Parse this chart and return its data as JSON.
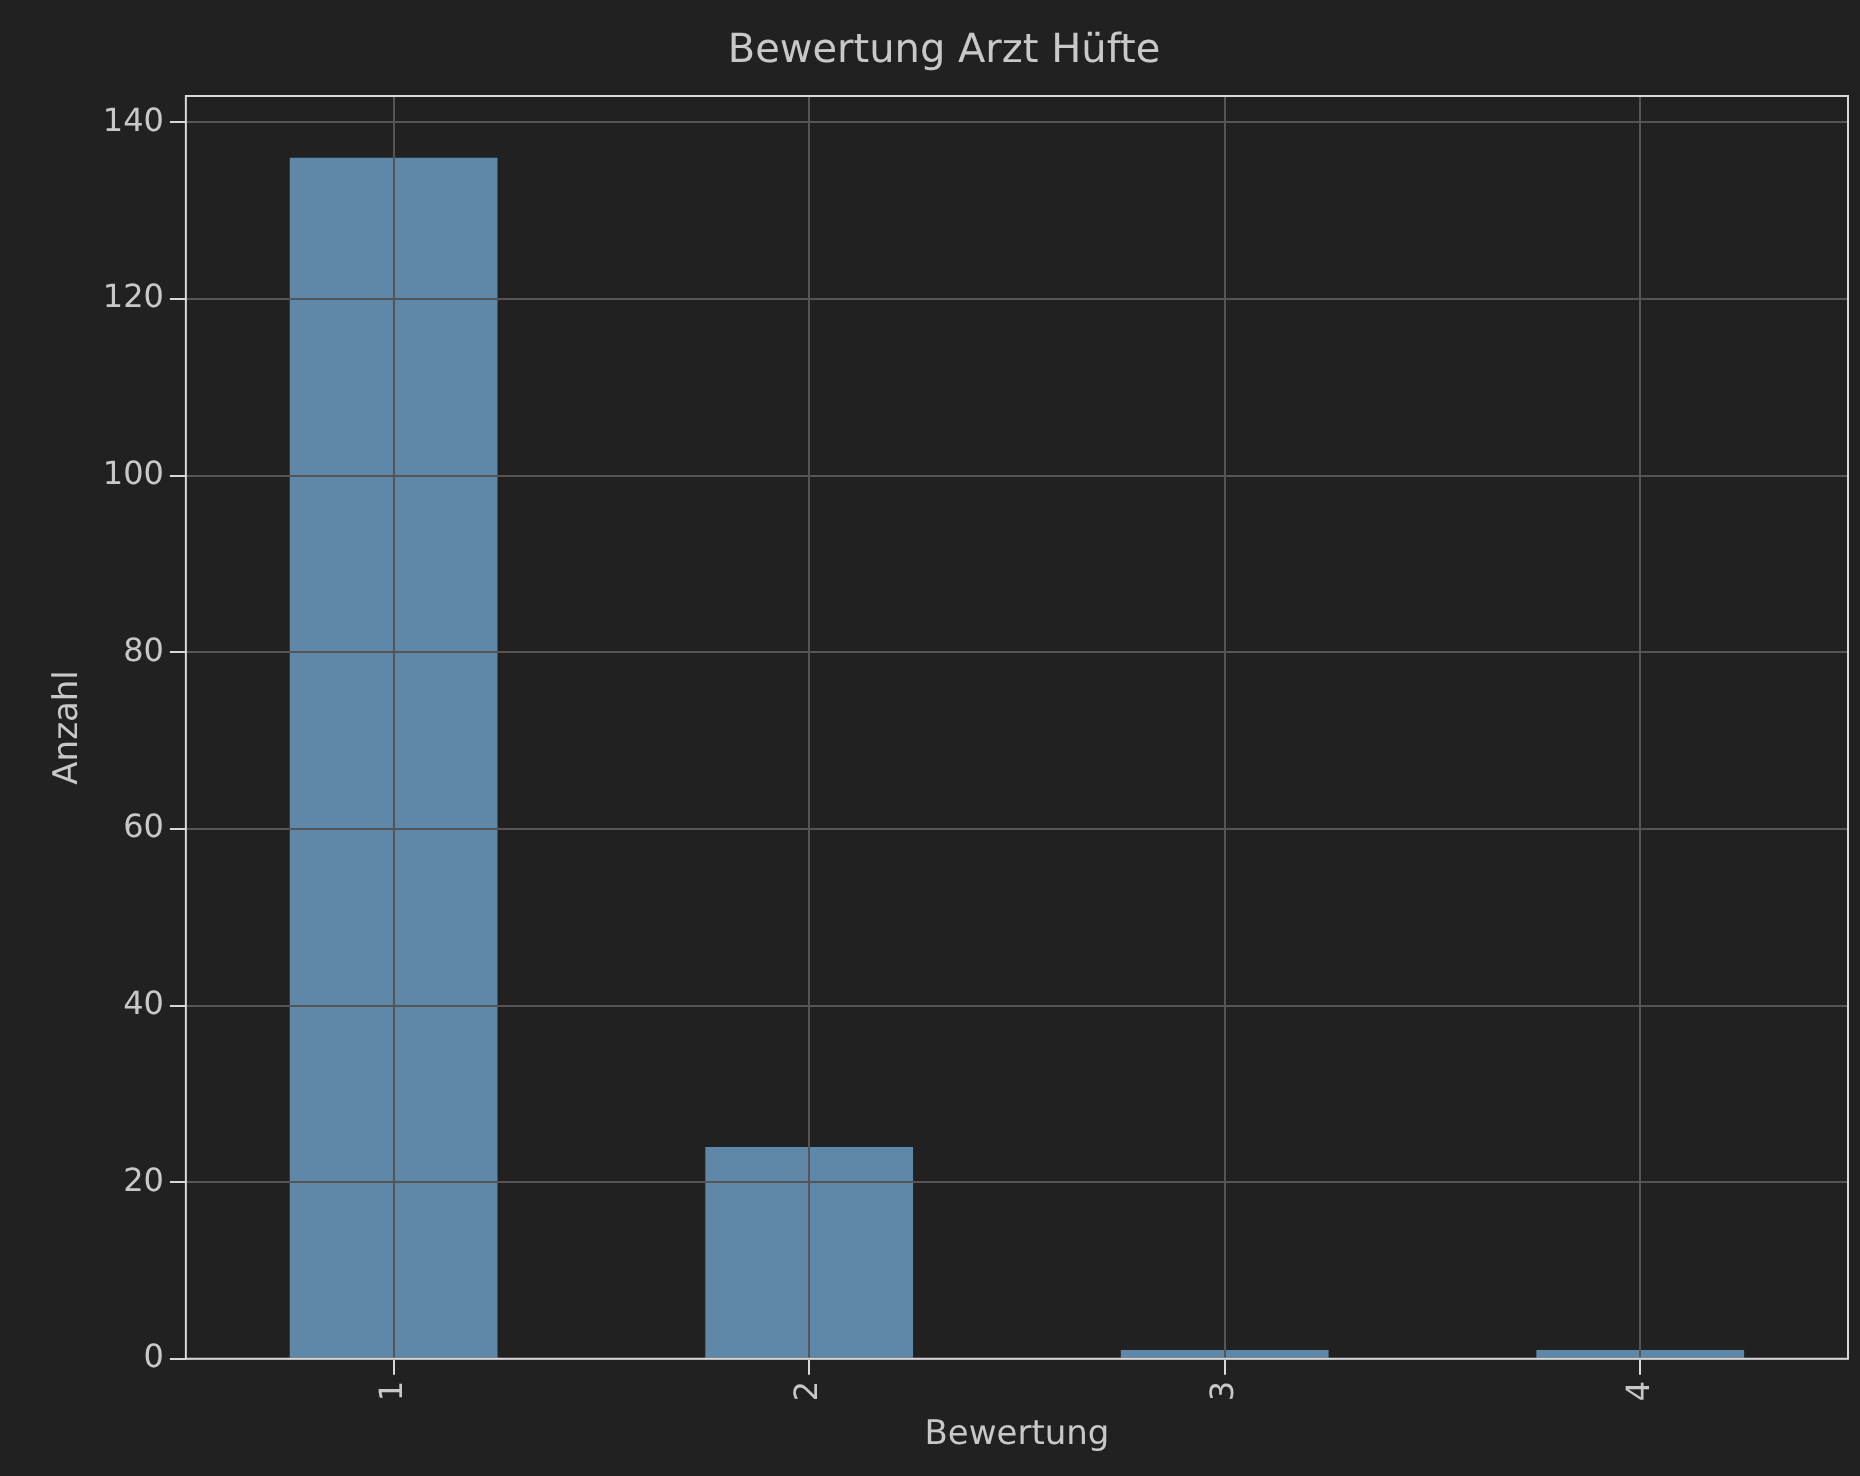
{
  "chart_data": {
    "type": "bar",
    "title": "Bewertung Arzt Hüfte",
    "xlabel": "Bewertung",
    "ylabel": "Anzahl",
    "categories": [
      "1",
      "2",
      "3",
      "4"
    ],
    "values": [
      136,
      24,
      1,
      1
    ],
    "color": "#5f87a8",
    "ylim": [
      0,
      143
    ],
    "yticks": [
      0,
      20,
      40,
      60,
      80,
      100,
      120,
      140
    ],
    "grid": true
  }
}
